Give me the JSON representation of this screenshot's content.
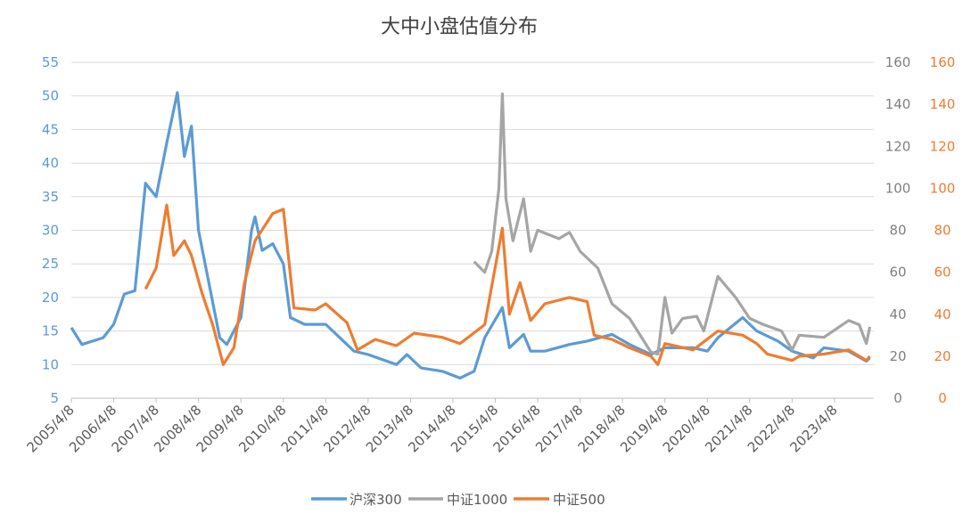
{
  "chart_data": {
    "type": "line",
    "title": "大中小盘估值分布",
    "x_tick_labels": [
      "2005/4/8",
      "2006/4/8",
      "2007/4/8",
      "2008/4/8",
      "2009/4/8",
      "2010/4/8",
      "2011/4/8",
      "2012/4/8",
      "2013/4/8",
      "2014/4/8",
      "2015/4/8",
      "2016/4/8",
      "2017/4/8",
      "2018/4/8",
      "2019/4/8",
      "2020/4/8",
      "2021/4/8",
      "2022/4/8",
      "2023/4/8"
    ],
    "xlim": [
      "2005-04",
      "2024-03"
    ],
    "y_left": {
      "ylim": [
        5,
        55
      ],
      "ticks": [
        5,
        10,
        15,
        20,
        25,
        30,
        35,
        40,
        45,
        50,
        55
      ],
      "color": "#5b9bd5"
    },
    "y_right1": {
      "ylim": [
        0,
        160
      ],
      "ticks": [
        0,
        20,
        40,
        60,
        80,
        100,
        120,
        140,
        160
      ],
      "color": "#808080"
    },
    "y_right2": {
      "ylim": [
        0,
        160
      ],
      "ticks": [
        0,
        20,
        40,
        60,
        80,
        100,
        120,
        140,
        160
      ],
      "color": "#ed7d31"
    },
    "grid": true,
    "legend_position": "bottom",
    "series": [
      {
        "name": "沪深300",
        "axis": "left",
        "color": "#5b9bd5",
        "x": [
          "2005-04",
          "2005-07",
          "2006-01",
          "2006-04",
          "2006-07",
          "2006-10",
          "2007-01",
          "2007-04",
          "2007-07",
          "2007-10",
          "2007-12",
          "2008-02",
          "2008-04",
          "2008-07",
          "2008-10",
          "2008-12",
          "2009-04",
          "2009-07",
          "2009-08",
          "2009-10",
          "2010-01",
          "2010-04",
          "2010-06",
          "2010-10",
          "2011-04",
          "2011-07",
          "2011-12",
          "2012-04",
          "2012-12",
          "2013-03",
          "2013-07",
          "2014-01",
          "2014-06",
          "2014-10",
          "2015-01",
          "2015-06",
          "2015-08",
          "2015-12",
          "2016-02",
          "2016-06",
          "2017-01",
          "2017-06",
          "2018-01",
          "2018-06",
          "2018-12",
          "2019-04",
          "2019-12",
          "2020-04",
          "2020-07",
          "2021-02",
          "2021-06",
          "2021-12",
          "2022-04",
          "2022-10",
          "2023-01",
          "2023-08",
          "2024-01",
          "2024-02"
        ],
        "y": [
          15.5,
          13,
          14,
          16,
          20.5,
          21,
          37,
          35,
          43,
          50.5,
          41,
          45.5,
          30,
          22,
          14,
          13,
          17,
          30,
          32,
          27,
          28,
          25,
          17,
          16,
          16,
          14.5,
          12,
          11.5,
          10,
          11.5,
          9.5,
          9,
          8,
          9,
          14,
          18.5,
          12.5,
          14.5,
          12,
          12,
          13,
          13.5,
          14.5,
          13,
          11.5,
          12.5,
          12.5,
          12,
          14,
          17,
          15,
          13.5,
          12,
          11,
          12.5,
          12,
          10.5,
          11
        ]
      },
      {
        "name": "中证1000",
        "axis": "right1",
        "color": "#a5a5a5",
        "x": [
          "2014-10",
          "2015-01",
          "2015-03",
          "2015-05",
          "2015-06",
          "2015-07",
          "2015-09",
          "2015-12",
          "2016-02",
          "2016-04",
          "2016-10",
          "2017-01",
          "2017-04",
          "2017-09",
          "2018-01",
          "2018-06",
          "2018-12",
          "2019-02",
          "2019-04",
          "2019-06",
          "2019-09",
          "2020-01",
          "2020-03",
          "2020-07",
          "2020-12",
          "2021-04",
          "2021-08",
          "2022-01",
          "2022-04",
          "2022-06",
          "2023-01",
          "2023-08",
          "2023-11",
          "2024-01",
          "2024-02"
        ],
        "y": [
          65,
          60,
          70,
          100,
          145,
          95,
          75,
          95,
          70,
          80,
          76,
          79,
          70,
          62,
          45,
          38,
          22,
          21,
          48,
          31,
          38,
          39,
          32,
          58,
          48,
          38,
          35,
          32,
          23,
          30,
          29,
          37,
          35,
          26,
          34
        ]
      },
      {
        "name": "中证500",
        "axis": "right2",
        "color": "#ed7d31",
        "x": [
          "2007-01",
          "2007-04",
          "2007-07",
          "2007-09",
          "2007-12",
          "2008-02",
          "2008-05",
          "2008-08",
          "2008-11",
          "2009-02",
          "2009-05",
          "2009-08",
          "2010-01",
          "2010-04",
          "2010-07",
          "2011-01",
          "2011-04",
          "2011-10",
          "2012-01",
          "2012-06",
          "2012-12",
          "2013-05",
          "2014-01",
          "2014-06",
          "2015-01",
          "2015-06",
          "2015-08",
          "2015-11",
          "2016-02",
          "2016-06",
          "2017-01",
          "2017-06",
          "2017-08",
          "2018-01",
          "2018-06",
          "2018-12",
          "2019-02",
          "2019-04",
          "2019-12",
          "2020-07",
          "2021-02",
          "2021-06",
          "2021-09",
          "2022-04",
          "2022-06",
          "2023-01",
          "2023-08",
          "2024-01",
          "2024-02"
        ],
        "y": [
          52,
          62,
          92,
          68,
          75,
          68,
          50,
          35,
          16,
          24,
          55,
          75,
          88,
          90,
          43,
          42,
          45,
          36,
          23,
          28,
          25,
          31,
          29,
          26,
          35,
          81,
          40,
          55,
          37,
          45,
          48,
          46,
          30,
          28,
          24,
          20,
          16,
          26,
          23,
          32,
          30,
          26,
          21,
          18,
          20,
          21,
          23,
          18,
          20
        ]
      }
    ]
  }
}
